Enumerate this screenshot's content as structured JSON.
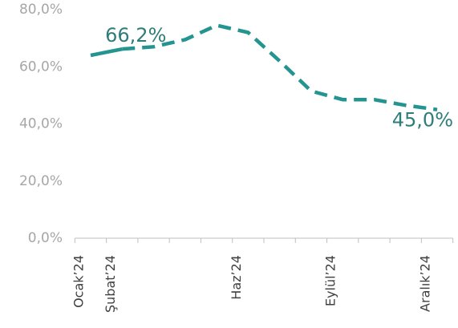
{
  "chart_data": {
    "type": "line",
    "categories": [
      "Ocak’24",
      "Şubat’24",
      null,
      null,
      null,
      "Haz’24",
      null,
      null,
      "Eylül’24",
      null,
      null,
      "Aralık’24"
    ],
    "series": [
      {
        "color": "#23948f",
        "dash": false,
        "values": [
          64.0,
          66.2,
          null,
          null,
          null,
          null,
          null,
          null,
          null,
          null,
          null,
          null
        ],
        "value_labels": [
          null,
          "66,2%",
          null,
          null,
          null,
          null,
          null,
          null,
          null,
          null,
          null,
          null
        ]
      },
      {
        "color": "#23948f",
        "dash": true,
        "values": [
          null,
          66.2,
          67.0,
          69.5,
          74.5,
          72.0,
          62.0,
          51.5,
          48.5,
          48.5,
          46.5,
          45.0
        ],
        "value_labels": [
          null,
          null,
          null,
          null,
          null,
          null,
          null,
          null,
          null,
          null,
          null,
          "45,0%"
        ]
      }
    ],
    "ylim": [
      0,
      80
    ],
    "yticks": [
      {
        "value": 0,
        "label": "0,0%"
      },
      {
        "value": 20,
        "label": "20,0%"
      },
      {
        "value": 40,
        "label": "40,0%"
      },
      {
        "value": 60,
        "label": "60,0%"
      },
      {
        "value": 80,
        "label": "80,0%"
      }
    ],
    "grid": false
  }
}
